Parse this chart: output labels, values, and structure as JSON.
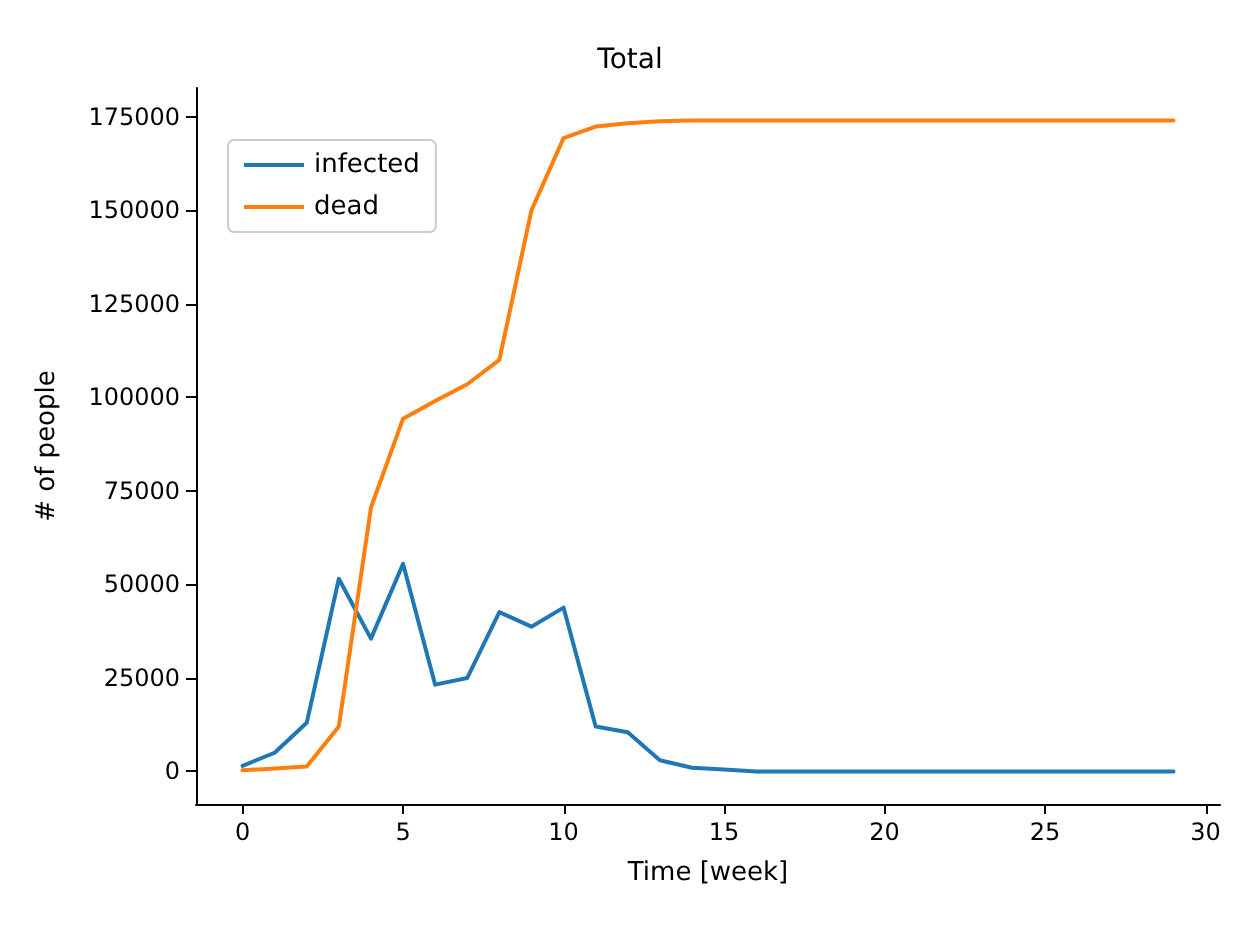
{
  "chart_data": {
    "type": "line",
    "title": "Total",
    "xlabel": "Time [week]",
    "ylabel": "# of people",
    "x": [
      0,
      1,
      2,
      3,
      4,
      5,
      6,
      7,
      8,
      9,
      10,
      11,
      12,
      13,
      14,
      15,
      16,
      17,
      18,
      19,
      20,
      21,
      22,
      23,
      24,
      25,
      26,
      27,
      28,
      29
    ],
    "series": [
      {
        "name": "infected",
        "color": "#1f77b4",
        "values": [
          1500,
          5000,
          13000,
          51500,
          35500,
          55500,
          23200,
          25000,
          42600,
          38700,
          43800,
          12000,
          10500,
          3000,
          1000,
          500,
          0,
          0,
          0,
          0,
          0,
          0,
          0,
          0,
          0,
          0,
          0,
          0,
          0,
          0
        ]
      },
      {
        "name": "dead",
        "color": "#ff7f0e",
        "values": [
          300,
          800,
          1300,
          12000,
          70500,
          94300,
          99000,
          103500,
          110000,
          150000,
          169300,
          172400,
          173300,
          173800,
          174000,
          174000,
          174000,
          174000,
          174000,
          174000,
          174000,
          174000,
          174000,
          174000,
          174000,
          174000,
          174000,
          174000,
          174000,
          174000
        ]
      }
    ],
    "xlim": [
      -1.45,
      30.45
    ],
    "xticks": [
      0,
      5,
      10,
      15,
      20,
      25,
      30
    ],
    "ylim": [
      -8700,
      182700
    ],
    "yticks": [
      0,
      25000,
      50000,
      75000,
      100000,
      125000,
      150000,
      175000
    ],
    "legend": "top left",
    "grid": false,
    "marker": "none",
    "line_style": "solid"
  }
}
